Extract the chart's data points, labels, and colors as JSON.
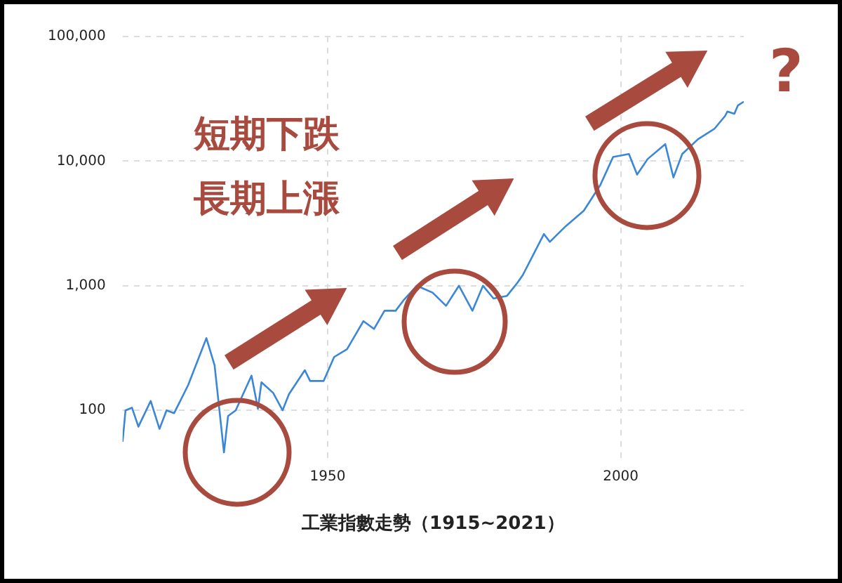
{
  "chart_data": {
    "type": "line",
    "xlabel": "工業指數走勢（1915~2021）",
    "x": [
      1915.0,
      1915.5,
      1916.6,
      1917.7,
      1919.8,
      1921.3,
      1922.5,
      1923.8,
      1926.2,
      1929.3,
      1930.7,
      1932.3,
      1933.0,
      1934.3,
      1937.0,
      1938.1,
      1938.7,
      1940.7,
      1942.3,
      1943.4,
      1946.1,
      1947.0,
      1949.3,
      1951.1,
      1953.3,
      1956.1,
      1957.9,
      1959.7,
      1961.6,
      1962.9,
      1965.2,
      1967.9,
      1970.2,
      1972.4,
      1974.7,
      1976.5,
      1978.3,
      1980.6,
      1982.4,
      1983.3,
      1986.9,
      1987.9,
      1990.6,
      1993.7,
      1996.5,
      1998.7,
      2001.4,
      2002.8,
      2004.6,
      2007.6,
      2009.0,
      2010.5,
      2013.2,
      2016.0,
      2017.8,
      2018.2,
      2019.4,
      2020.0,
      2021.0
    ],
    "series": [
      {
        "color": "#3b86d6",
        "values": [
          56,
          100,
          105,
          74,
          119,
          71,
          100,
          95,
          160,
          380,
          230,
          46,
          90,
          100,
          190,
          103,
          168,
          138,
          100,
          135,
          210,
          172,
          172,
          268,
          310,
          520,
          450,
          630,
          630,
          760,
          1000,
          880,
          690,
          1000,
          630,
          1000,
          790,
          830,
          1060,
          1220,
          2600,
          2250,
          3000,
          4000,
          6400,
          10800,
          11400,
          7800,
          10400,
          13700,
          7400,
          11400,
          15000,
          18200,
          23000,
          25000,
          24000,
          28000,
          30000
        ]
      }
    ],
    "xlim": [
      1915,
      2021
    ],
    "xticks": [
      1950,
      2000
    ],
    "log": true,
    "ylim": [
      40,
      100000
    ],
    "yticks": [
      100,
      {
        "value": 1000,
        "label": "1,000"
      },
      {
        "value": 10000,
        "label": "10,000"
      },
      {
        "value": 100000,
        "label": "100,000"
      }
    ],
    "grid": true,
    "marker": "none",
    "line_style": "solid",
    "annotations": [
      "短期下跌",
      "長期上漲",
      "?"
    ]
  }
}
